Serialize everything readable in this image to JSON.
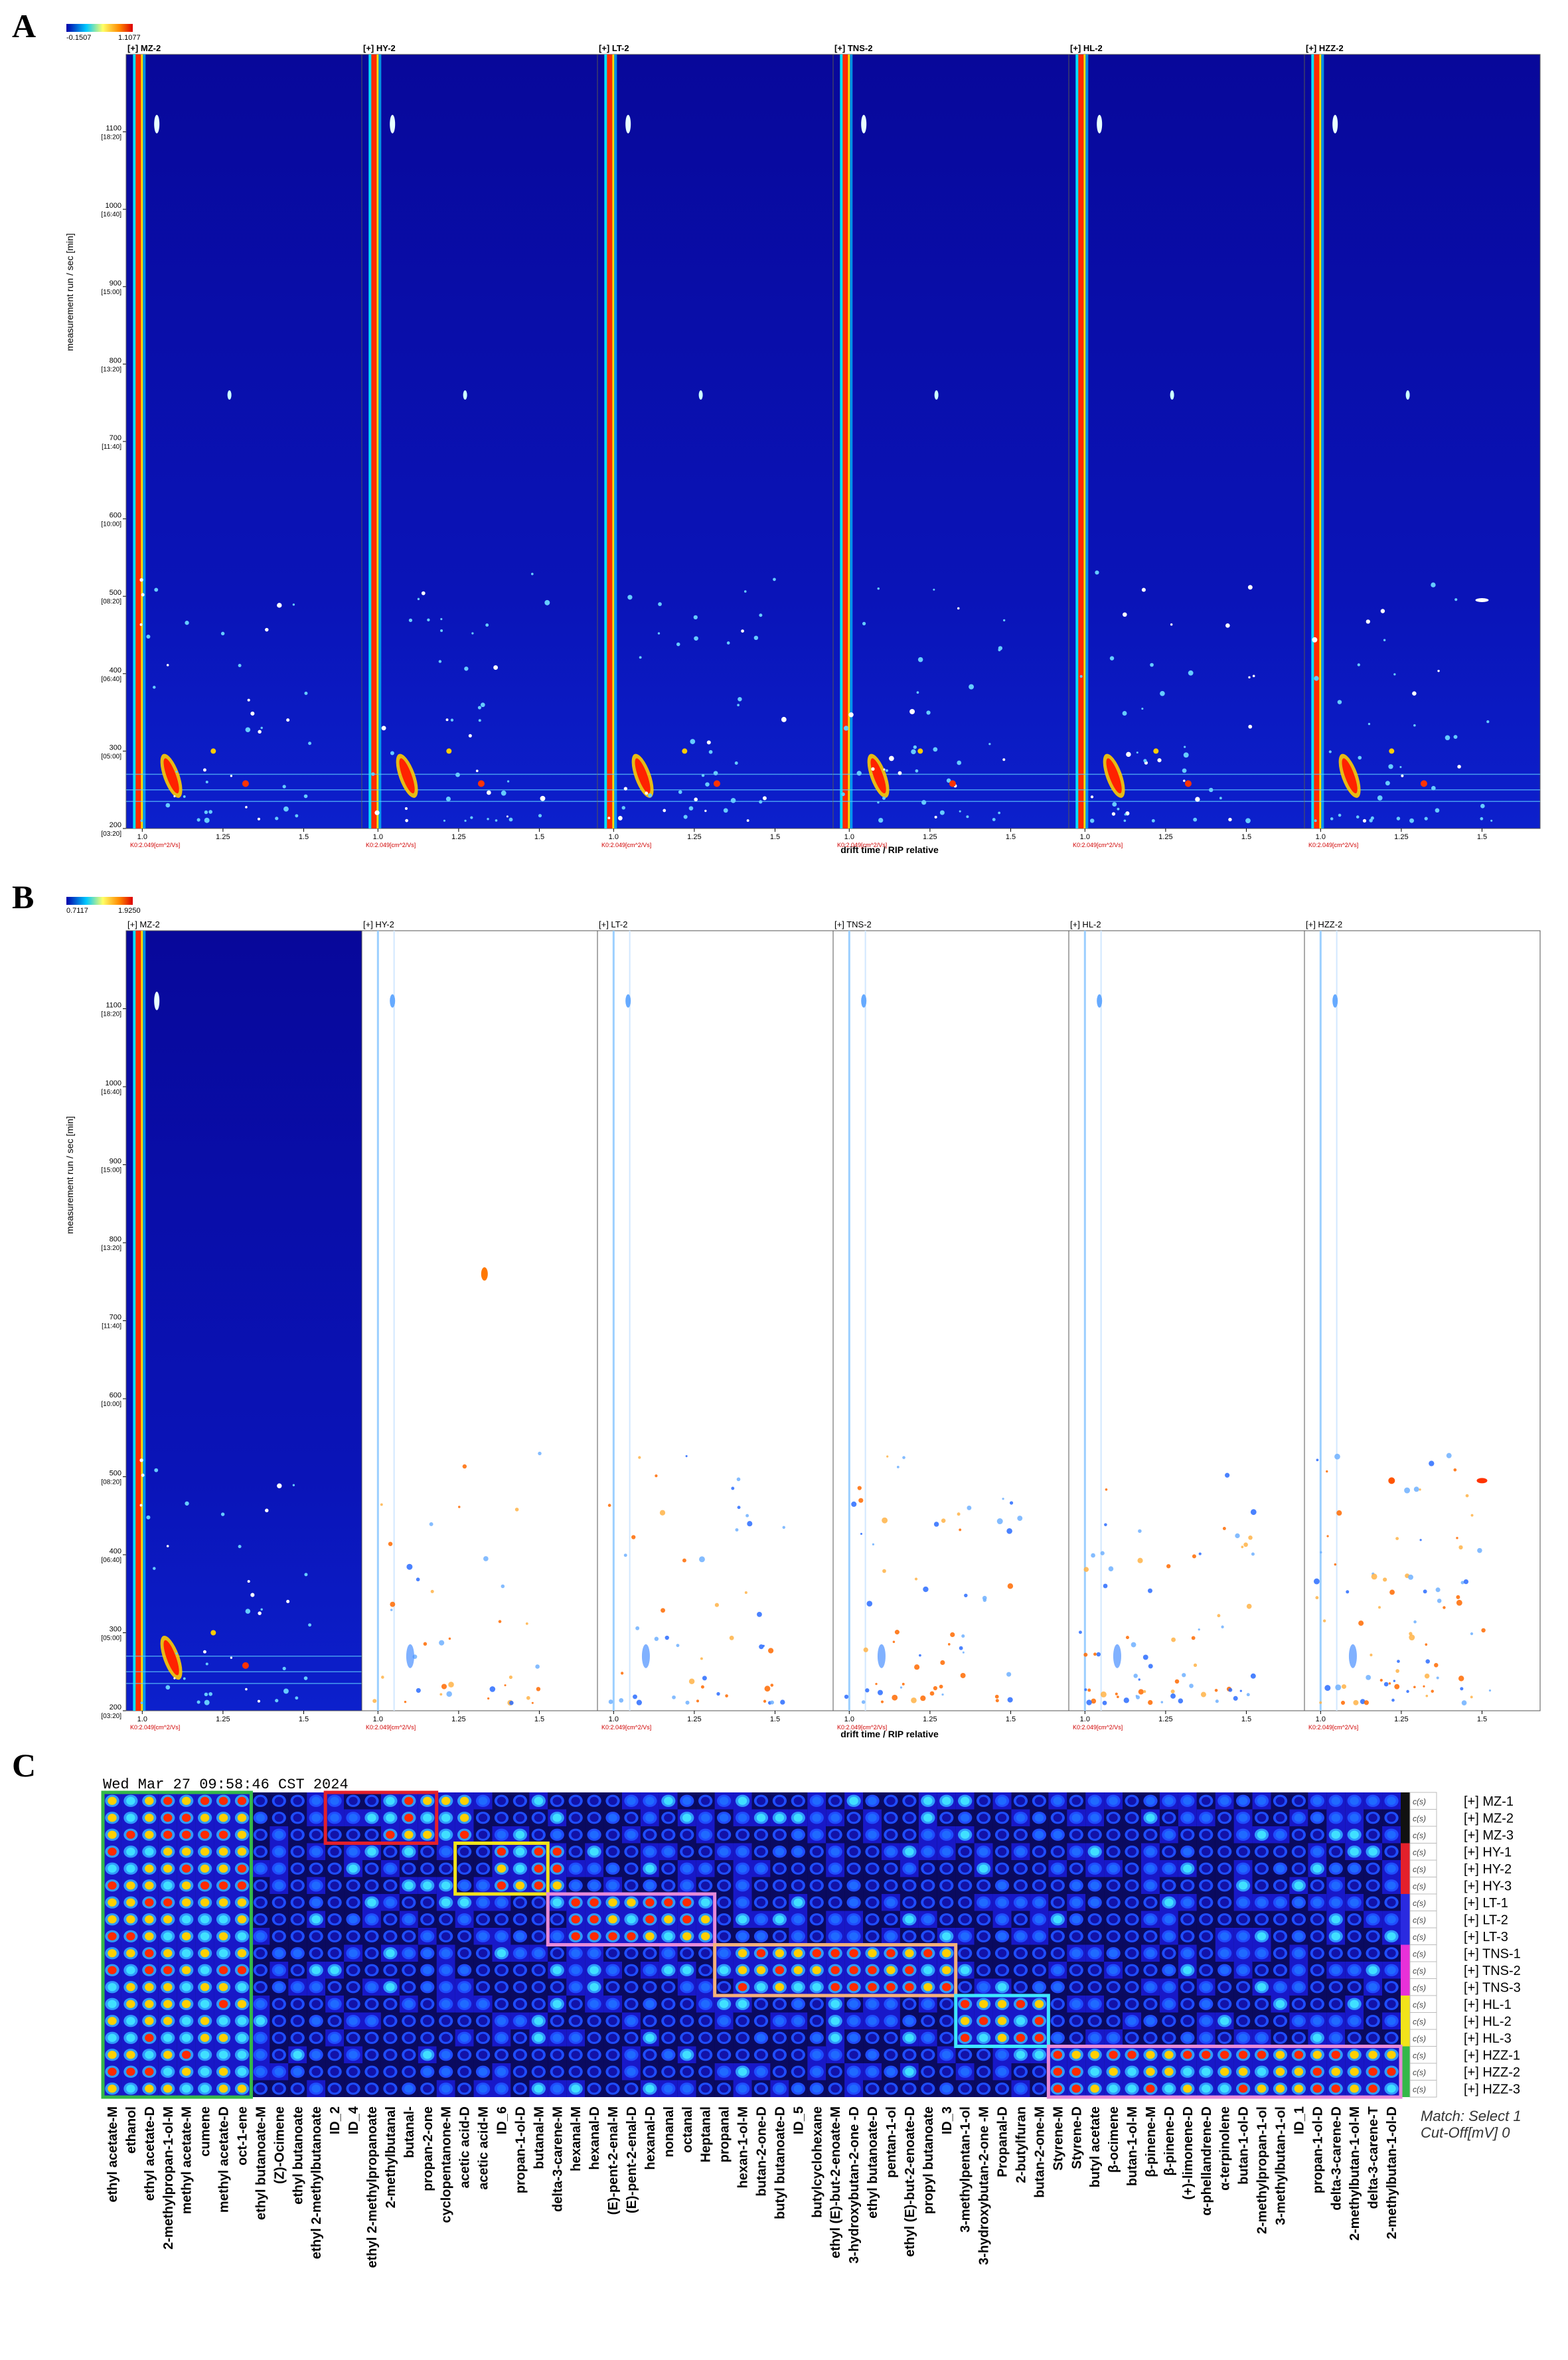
{
  "panel_labels": {
    "a": "A",
    "b": "B",
    "c": "C"
  },
  "colors": {
    "dark_blue": "#00009a",
    "cell_bg": "#1a1ad6",
    "red": "#e3202b",
    "yellow": "#f2e31a",
    "cyan": "#3fe6ff",
    "pink": "#e68ad9",
    "orange": "#f5b07a",
    "green": "#34b84a",
    "magenta": "#e830d8"
  },
  "chart_data": [
    {
      "type": "heatmap",
      "panel": "A",
      "colorbar": {
        "min_label": "-0.1507",
        "max_label": "1.1077"
      },
      "samples": [
        "[+] MZ-2",
        "[+] HY-2",
        "[+] LT-2",
        "[+] TNS-2",
        "[+] HL-2",
        "[+] HZZ-2"
      ],
      "ylabel": "measurement run / sec [min]",
      "xlabel": "drift time / RIP relative",
      "y_ticks": [
        {
          "v": 200,
          "t": "[03:20]"
        },
        {
          "v": 300,
          "t": "[05:00]"
        },
        {
          "v": 400,
          "t": "[06:40]"
        },
        {
          "v": 500,
          "t": "[08:20]"
        },
        {
          "v": 600,
          "t": "[10:00]"
        },
        {
          "v": 700,
          "t": "[11:40]"
        },
        {
          "v": 800,
          "t": "[13:20]"
        },
        {
          "v": 900,
          "t": "[15:00]"
        },
        {
          "v": 1000,
          "t": "[16:40]"
        },
        {
          "v": 1100,
          "t": "[18:20]"
        }
      ],
      "ylim": [
        200,
        1200
      ],
      "x_ticks": [
        "1.0",
        "1.25",
        "1.5"
      ],
      "xlim": [
        0.95,
        1.68
      ],
      "rip_label": "K0:2.049[cm^2/Vs]"
    },
    {
      "type": "heatmap",
      "panel": "B",
      "colorbar": {
        "min_label": "0.7117",
        "max_label": "1.9250"
      },
      "samples": [
        "[+] MZ-2",
        "[+] HY-2",
        "[+] LT-2",
        "[+] TNS-2",
        "[+] HL-2",
        "[+] HZZ-2"
      ],
      "ylabel": "measurement run / sec [min]",
      "xlabel": "drift time / RIP relative",
      "y_ticks": [
        {
          "v": 200,
          "t": "[03:20]"
        },
        {
          "v": 300,
          "t": "[05:00]"
        },
        {
          "v": 400,
          "t": "[06:40]"
        },
        {
          "v": 500,
          "t": "[08:20]"
        },
        {
          "v": 600,
          "t": "[10:00]"
        },
        {
          "v": 700,
          "t": "[11:40]"
        },
        {
          "v": 800,
          "t": "[13:20]"
        },
        {
          "v": 900,
          "t": "[15:00]"
        },
        {
          "v": 1000,
          "t": "[16:40]"
        },
        {
          "v": 1100,
          "t": "[18:20]"
        }
      ],
      "ylim": [
        200,
        1200
      ],
      "x_ticks": [
        "1.0",
        "1.25",
        "1.5"
      ],
      "xlim": [
        0.95,
        1.68
      ],
      "rip_label": "K0:2.049[cm^2/Vs]"
    },
    {
      "type": "heatmap",
      "panel": "C",
      "timestamp": "Wed Mar 27 09:58:46 CST 2024",
      "match_label": "Match: Select 1",
      "cutoff_label": "Cut-Off[mV] 0",
      "rows": [
        "[+] MZ-1",
        "[+] MZ-2",
        "[+] MZ-3",
        "[+] HY-1",
        "[+] HY-2",
        "[+] HY-3",
        "[+] LT-1",
        "[+] LT-2",
        "[+] LT-3",
        "[+] TNS-1",
        "[+] TNS-2",
        "[+] TNS-3",
        "[+] HL-1",
        "[+] HL-2",
        "[+] HL-3",
        "[+] HZZ-1",
        "[+] HZZ-2",
        "[+] HZZ-3"
      ],
      "row_tag": "c(s)",
      "columns": [
        "ethyl acetate-M",
        "ethanol",
        "ethyl acetate-D",
        "2-methylpropan-1-ol-M",
        "methyl acetate-M",
        "cumene",
        "methyl acetate-D",
        "oct-1-ene",
        "ethyl butanoate-M",
        "(Z)-Ocimene",
        "ethyl butanoate",
        "ethyl 2-methylbutanoate",
        "ID_2",
        "ID_4",
        "ethyl 2-methylpropanoate",
        "2-methylbutanal",
        "butanal-",
        "propan-2-one",
        "cyclopentanone-M",
        "acetic acid-D",
        "acetic acid-M",
        "ID_6",
        "propan-1-ol-D",
        "butanal-M",
        "delta-3-carene-M",
        "hexanal-M",
        "hexanal-D",
        "(E)-pent-2-enal-M",
        "(E)-pent-2-enal-D",
        "hexanal-D",
        "nonanal",
        "octanal",
        "Heptanal",
        "propanal",
        "hexan-1-ol-M",
        "butan-2-one-D",
        "butyl butanoate-D",
        "ID_5",
        "butylcyclohexane",
        "ethyl (E)-but-2-enoate-M",
        "3-hydroxybutan-2-one -D",
        "ethyl butanoate-D",
        "pentan-1-ol",
        "ethyl (E)-but-2-enoate-D",
        "propyl butanoate",
        "ID_3",
        "3-methylpentan-1-ol",
        "3-hydroxybutan-2-one -M",
        "Propanal-D",
        "2-butylfuran",
        "butan-2-one-M",
        "Styrene-M",
        "Styrene-D",
        "butyl acetate",
        "β-ocimene",
        "butan-1-ol-M",
        "β-pinene-M",
        "β-pinene-D",
        "(+)-limonene-D",
        "α-phellandrene-D",
        "α-terpinolene",
        "butan-1-ol-D",
        "2-methylpropan-1-ol",
        "3-methylbutan-1-ol",
        "ID_1",
        "propan-1-ol-D",
        "delta-3-carene-D",
        "2-methylbutan-1-ol-M",
        "delta-3-carene-T",
        "2-methylbutan-1-ol-D"
      ],
      "highlight_boxes": [
        {
          "group": "MZ",
          "color": "green"
        },
        {
          "group": "MZ",
          "color": "red"
        },
        {
          "group": "HY",
          "color": "yellow"
        },
        {
          "group": "LT",
          "color": "pink"
        },
        {
          "group": "TNS",
          "color": "orange"
        },
        {
          "group": "HL",
          "color": "cyan"
        },
        {
          "group": "HZZ",
          "color": "pink"
        }
      ]
    }
  ]
}
